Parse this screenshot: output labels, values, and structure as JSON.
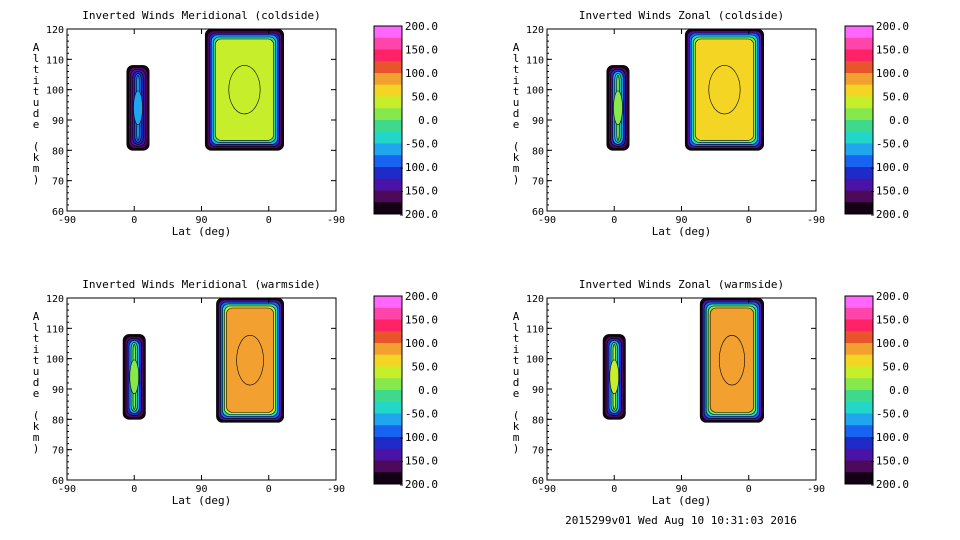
{
  "figure": {
    "footer": "2015299v01 Wed Aug 10 10:31:03 2016"
  },
  "colorbar": {
    "ticks": [
      "200.0",
      "150.0",
      "100.0",
      "50.0",
      "0.0",
      "-50.0",
      "-100.0",
      "-150.0",
      "-200.0"
    ],
    "colors": [
      "#ff66ff",
      "#ff44aa",
      "#ff2266",
      "#e8552c",
      "#f2a030",
      "#f5d524",
      "#c6ee2a",
      "#86e84a",
      "#3ed98a",
      "#22d7c8",
      "#1fa6ef",
      "#1764f2",
      "#1e2bc8",
      "#4a12a6",
      "#4d0a5a",
      "#140014"
    ]
  },
  "axes_common": {
    "xlabel": "Lat (deg)",
    "ylabel": "Altitude (km)",
    "xticks": [
      "-90",
      "0",
      "90",
      "0",
      "-90"
    ],
    "yticks": [
      "120",
      "110",
      "100",
      "90",
      "80",
      "70",
      "60"
    ]
  },
  "chart_data": [
    {
      "type": "heatmap",
      "title": "Inverted Winds Meridional (coldside)",
      "xlabel": "Lat (deg)",
      "ylabel": "Altitude (km)",
      "ylim": [
        60,
        120
      ],
      "clim": [
        -200,
        200
      ],
      "lat_folded_axis": [
        -90,
        0,
        90,
        0,
        -90
      ],
      "regions": [
        {
          "x_range": [
            -10,
            20
          ],
          "alt_range": [
            80,
            108
          ],
          "peak_value": -60
        },
        {
          "x_range": [
            95,
            200
          ],
          "alt_range": [
            80,
            120
          ],
          "peak_value": 30
        }
      ]
    },
    {
      "type": "heatmap",
      "title": "Inverted Winds Zonal (coldside)",
      "xlabel": "Lat (deg)",
      "ylabel": "Altitude (km)",
      "ylim": [
        60,
        120
      ],
      "clim": [
        -200,
        200
      ],
      "lat_folded_axis": [
        -90,
        0,
        90,
        0,
        -90
      ],
      "regions": [
        {
          "x_range": [
            -10,
            20
          ],
          "alt_range": [
            80,
            108
          ],
          "peak_value": 10
        },
        {
          "x_range": [
            95,
            200
          ],
          "alt_range": [
            80,
            120
          ],
          "peak_value": 60
        }
      ]
    },
    {
      "type": "heatmap",
      "title": "Inverted Winds Meridional (warmside)",
      "xlabel": "Lat (deg)",
      "ylabel": "Altitude (km)",
      "ylim": [
        60,
        120
      ],
      "clim": [
        -200,
        200
      ],
      "lat_folded_axis": [
        -90,
        0,
        90,
        0,
        -90
      ],
      "regions": [
        {
          "x_range": [
            -15,
            15
          ],
          "alt_range": [
            80,
            108
          ],
          "peak_value": 20
        },
        {
          "x_range": [
            110,
            200
          ],
          "alt_range": [
            79,
            120
          ],
          "peak_value": 90
        }
      ]
    },
    {
      "type": "heatmap",
      "title": "Inverted Winds Zonal (warmside)",
      "xlabel": "Lat (deg)",
      "ylabel": "Altitude (km)",
      "ylim": [
        60,
        120
      ],
      "clim": [
        -200,
        200
      ],
      "lat_folded_axis": [
        -90,
        0,
        90,
        0,
        -90
      ],
      "regions": [
        {
          "x_range": [
            -15,
            15
          ],
          "alt_range": [
            80,
            108
          ],
          "peak_value": 30
        },
        {
          "x_range": [
            115,
            200
          ],
          "alt_range": [
            79,
            120
          ],
          "peak_value": 80
        }
      ]
    }
  ]
}
